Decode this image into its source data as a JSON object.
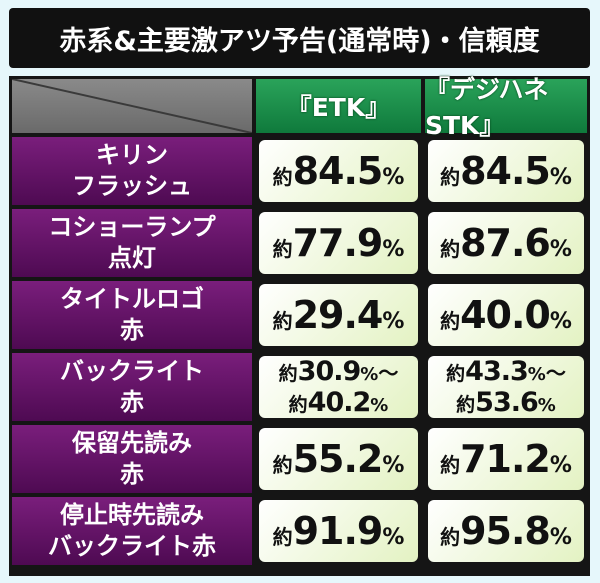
{
  "title": "赤系&主要激アツ予告(通常時)・信頼度",
  "columns": [
    "『ETK』",
    "『デジハネSTK』"
  ],
  "rows": [
    {
      "label": "キリン\nフラッシュ",
      "values": [
        {
          "lines": [
            {
              "prefix": "約",
              "value": "84.5",
              "unit": "%"
            }
          ]
        },
        {
          "lines": [
            {
              "prefix": "約",
              "value": "84.5",
              "unit": "%"
            }
          ]
        }
      ]
    },
    {
      "label": "コショーランプ\n点灯",
      "values": [
        {
          "lines": [
            {
              "prefix": "約",
              "value": "77.9",
              "unit": "%"
            }
          ]
        },
        {
          "lines": [
            {
              "prefix": "約",
              "value": "87.6",
              "unit": "%"
            }
          ]
        }
      ]
    },
    {
      "label": "タイトルロゴ\n赤",
      "values": [
        {
          "lines": [
            {
              "prefix": "約",
              "value": "29.4",
              "unit": "%"
            }
          ]
        },
        {
          "lines": [
            {
              "prefix": "約",
              "value": "40.0",
              "unit": "%"
            }
          ]
        }
      ]
    },
    {
      "label": "バックライト\n赤",
      "values": [
        {
          "range": true,
          "lines": [
            {
              "prefix": "約",
              "value": "30.9",
              "unit": "%",
              "sep": "～"
            },
            {
              "prefix": "約",
              "value": "40.2",
              "unit": "%"
            }
          ]
        },
        {
          "range": true,
          "lines": [
            {
              "prefix": "約",
              "value": "43.3",
              "unit": "%",
              "sep": "～"
            },
            {
              "prefix": "約",
              "value": "53.6",
              "unit": "%"
            }
          ]
        }
      ]
    },
    {
      "label": "保留先読み\n赤",
      "values": [
        {
          "lines": [
            {
              "prefix": "約",
              "value": "55.2",
              "unit": "%"
            }
          ]
        },
        {
          "lines": [
            {
              "prefix": "約",
              "value": "71.2",
              "unit": "%"
            }
          ]
        }
      ]
    },
    {
      "label": "停止時先読み\nバックライト赤",
      "values": [
        {
          "lines": [
            {
              "prefix": "約",
              "value": "91.9",
              "unit": "%"
            }
          ]
        },
        {
          "lines": [
            {
              "prefix": "約",
              "value": "95.8",
              "unit": "%"
            }
          ]
        }
      ]
    }
  ],
  "colors": {
    "title_bg": "#111111",
    "header_green": "#17884a",
    "row_purple": "#6a156d",
    "cell_bg": "#f4f9e8",
    "page_bg": "#e6f7fb"
  }
}
